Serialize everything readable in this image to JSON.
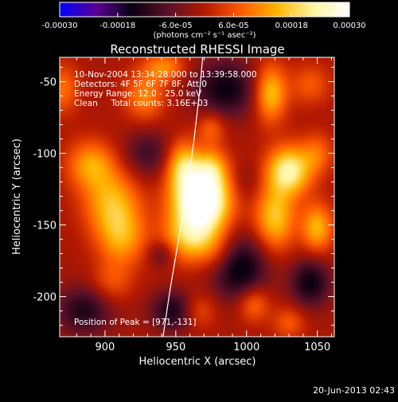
{
  "chart_data": {
    "type": "heatmap",
    "title": "Reconstructed RHESSI Image",
    "xlabel": "Heliocentric X (arcsec)",
    "ylabel": "Heliocentric Y (arcsec)",
    "xlim": [
      868,
      1062
    ],
    "ylim": [
      -228,
      -33
    ],
    "x_ticks": [
      "900",
      "950",
      "1000",
      "1050"
    ],
    "x_tick_values": [
      900,
      950,
      1000,
      1050
    ],
    "y_ticks": [
      "-50",
      "-100",
      "-150",
      "-200"
    ],
    "y_tick_values": [
      -50,
      -100,
      -150,
      -200
    ],
    "colorbar": {
      "min": -0.0003,
      "max": 0.0003,
      "tick_labels": [
        "-0.00030",
        "-0.00018",
        "-6.0e-05",
        "6.0e-05",
        "0.00018",
        "0.00030"
      ],
      "tick_values": [
        -0.0003,
        -0.00018,
        -6e-05,
        6e-05,
        0.00018,
        0.0003
      ],
      "unit_label": "(photons cm⁻² s⁻¹ asec⁻²)",
      "colors": [
        "#0000ff",
        "#5a0096",
        "#0a0010",
        "#5a1028",
        "#b41900",
        "#ff5a00",
        "#ffb400",
        "#fff5a0",
        "#ffffff"
      ]
    },
    "annotations": [
      "10-Nov-2004 13:34:28.000 to 13:39:58.000",
      "Detectors: 4F 5F 6F 7F 8F, Att 0",
      "Energy Range: 12.0 - 25.0 keV",
      "Clean     Total counts: 3.16E+03",
      "Position of Peak = [971,-131]"
    ],
    "peak": {
      "x": 971,
      "y": -131,
      "value": 0.0003
    },
    "blobs": [
      {
        "x": 968,
        "y": -133,
        "sx": 14,
        "sy": 16,
        "a": 0.00038
      },
      {
        "x": 955,
        "y": -108,
        "sx": 8,
        "sy": 12,
        "a": 0.00016
      },
      {
        "x": 975,
        "y": -110,
        "sx": 8,
        "sy": 10,
        "a": 0.00012
      },
      {
        "x": 960,
        "y": -160,
        "sx": 14,
        "sy": 12,
        "a": 0.00015
      },
      {
        "x": 980,
        "y": -170,
        "sx": 10,
        "sy": 10,
        "a": 6e-05
      },
      {
        "x": 890,
        "y": -108,
        "sx": 12,
        "sy": 12,
        "a": 0.00014
      },
      {
        "x": 905,
        "y": -135,
        "sx": 14,
        "sy": 16,
        "a": 0.00016
      },
      {
        "x": 912,
        "y": -160,
        "sx": 12,
        "sy": 14,
        "a": 0.00013
      },
      {
        "x": 905,
        "y": -190,
        "sx": 10,
        "sy": 10,
        "a": 7e-05
      },
      {
        "x": 870,
        "y": -55,
        "sx": 8,
        "sy": 12,
        "a": 0.0001
      },
      {
        "x": 928,
        "y": -60,
        "sx": 10,
        "sy": 12,
        "a": 0.00012
      },
      {
        "x": 942,
        "y": -40,
        "sx": 10,
        "sy": 7,
        "a": 0.00012
      },
      {
        "x": 975,
        "y": -82,
        "sx": 7,
        "sy": 8,
        "a": 9e-05
      },
      {
        "x": 1030,
        "y": -112,
        "sx": 11,
        "sy": 12,
        "a": 0.00024
      },
      {
        "x": 1020,
        "y": -145,
        "sx": 10,
        "sy": 16,
        "a": 0.00018
      },
      {
        "x": 1050,
        "y": -152,
        "sx": 8,
        "sy": 12,
        "a": 0.00016
      },
      {
        "x": 1050,
        "y": -100,
        "sx": 8,
        "sy": 10,
        "a": 9e-05
      },
      {
        "x": 1017,
        "y": -58,
        "sx": 8,
        "sy": 14,
        "a": 0.00018
      },
      {
        "x": 1045,
        "y": -52,
        "sx": 10,
        "sy": 10,
        "a": 8e-05
      },
      {
        "x": 965,
        "y": -210,
        "sx": 9,
        "sy": 9,
        "a": 0.0001
      },
      {
        "x": 1005,
        "y": -205,
        "sx": 8,
        "sy": 9,
        "a": 0.00011
      },
      {
        "x": 1030,
        "y": -218,
        "sx": 8,
        "sy": 8,
        "a": 8e-05
      },
      {
        "x": 940,
        "y": -170,
        "sx": 7,
        "sy": 7,
        "a": -8e-05
      },
      {
        "x": 950,
        "y": -210,
        "sx": 12,
        "sy": 10,
        "a": -0.00014
      },
      {
        "x": 995,
        "y": -180,
        "sx": 14,
        "sy": 16,
        "a": -0.00016
      },
      {
        "x": 985,
        "y": -55,
        "sx": 16,
        "sy": 14,
        "a": -0.00014
      },
      {
        "x": 1000,
        "y": -120,
        "sx": 8,
        "sy": 10,
        "a": -4e-05
      },
      {
        "x": 930,
        "y": -100,
        "sx": 12,
        "sy": 12,
        "a": -9e-05
      },
      {
        "x": 885,
        "y": -210,
        "sx": 14,
        "sy": 12,
        "a": -0.00012
      },
      {
        "x": 1045,
        "y": -190,
        "sx": 10,
        "sy": 12,
        "a": -0.00014
      }
    ],
    "limb_curve": [
      {
        "x": 941,
        "y": -228
      },
      {
        "x": 946,
        "y": -195
      },
      {
        "x": 952,
        "y": -160
      },
      {
        "x": 958,
        "y": -125
      },
      {
        "x": 963,
        "y": -90
      },
      {
        "x": 967,
        "y": -55
      },
      {
        "x": 969,
        "y": -33
      }
    ]
  },
  "footer": {
    "date": "20-Jun-2013 02:43"
  }
}
